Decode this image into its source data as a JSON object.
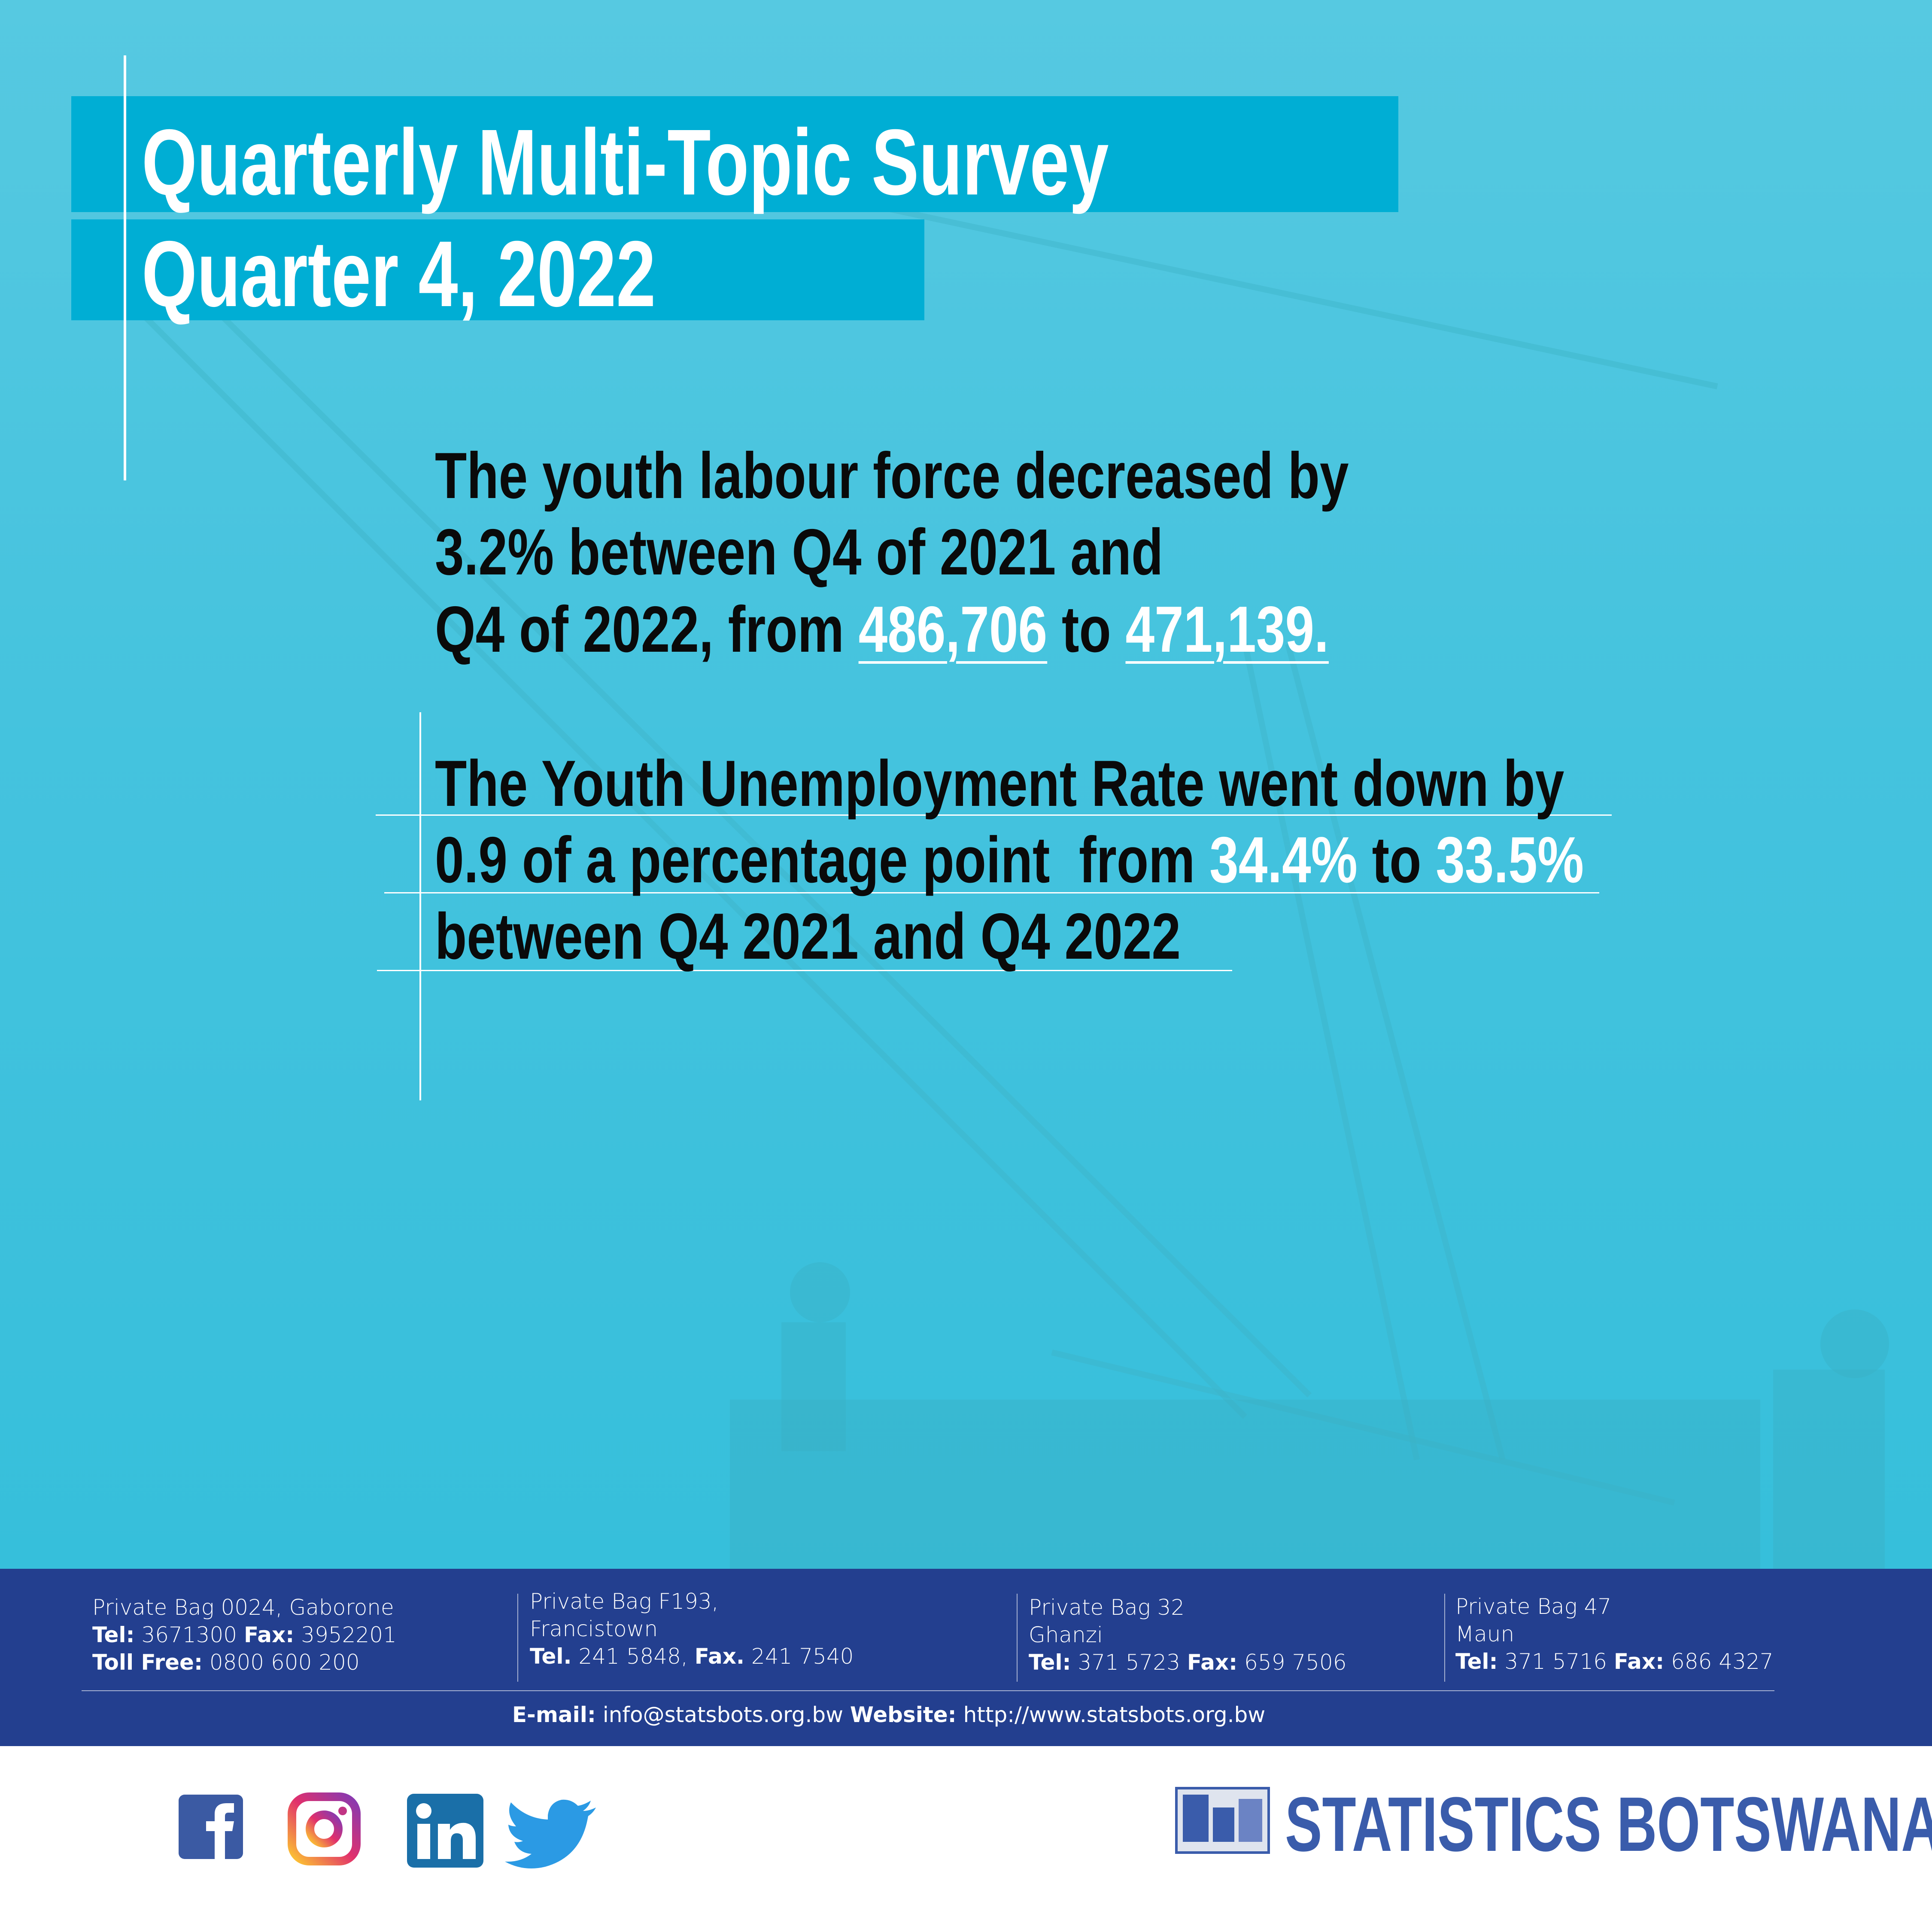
{
  "header": {
    "title_line1": "Quarterly Multi-Topic Survey",
    "title_line2": "Quarter 4, 2022"
  },
  "statements": [
    {
      "lines": [
        "The youth labour force decreased by",
        "3.2% between Q4 of 2021 and",
        "Q4 of 2022, from"
      ],
      "from_value": "486,706",
      "connector": "to",
      "to_value": "471,139."
    },
    {
      "lines": [
        "The Youth Unemployment Rate went down by",
        "0.9 of a percentage point  from",
        "between Q4 2021 and Q4 2022"
      ],
      "from_value": "34.4%",
      "connector": "to",
      "to_value": "33.5%"
    }
  ],
  "footer": {
    "offices": [
      {
        "address": [
          "Private Bag 0024, Gaborone"
        ],
        "lines": [
          [
            {
              "label": "Tel:",
              "value": "3671300"
            },
            {
              "label": "Fax:",
              "value": "3952201"
            }
          ],
          [
            {
              "label": "Toll Free:",
              "value": "0800 600 200"
            }
          ]
        ]
      },
      {
        "address": [
          "Private Bag F193,",
          "Francistown"
        ],
        "lines": [
          [
            {
              "label": "Tel.",
              "value": "241 5848,"
            },
            {
              "label": "Fax.",
              "value": "241 7540"
            }
          ]
        ]
      },
      {
        "address": [
          "Private Bag 32",
          "Ghanzi"
        ],
        "lines": [
          [
            {
              "label": "Tel:",
              "value": "371 5723"
            },
            {
              "label": "Fax:",
              "value": "659 7506"
            }
          ]
        ]
      },
      {
        "address": [
          "Private Bag 47",
          "Maun"
        ],
        "lines": [
          [
            {
              "label": "Tel:",
              "value": "371 5716"
            },
            {
              "label": "Fax:",
              "value": "686 4327"
            }
          ]
        ]
      }
    ],
    "contact": [
      {
        "label": "E-mail:",
        "value": "info@statsbots.org.bw"
      },
      {
        "label": "Website:",
        "value": "http://www.statsbots.org.bw"
      }
    ]
  },
  "brand": "STATISTICS BOTSWANA"
}
